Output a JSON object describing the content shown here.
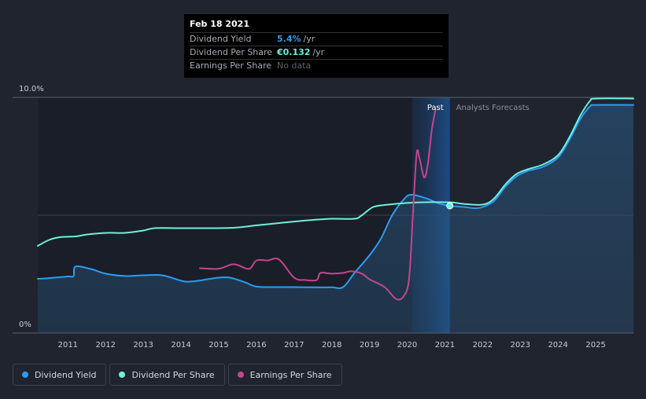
{
  "tooltip": {
    "date": "Feb 18 2021",
    "rows": [
      {
        "label": "Dividend Yield",
        "value": "5.4%",
        "unit": "/yr",
        "color": "#2a9df4"
      },
      {
        "label": "Dividend Per Share",
        "value": "€0.132",
        "unit": "/yr",
        "color": "#6ff0dc"
      },
      {
        "label": "Earnings Per Share",
        "value": "No data",
        "unit": "",
        "color": "#5d616a"
      }
    ]
  },
  "legend": [
    {
      "label": "Dividend Yield",
      "color": "#2a9df4"
    },
    {
      "label": "Dividend Per Share",
      "color": "#6ff0dc"
    },
    {
      "label": "Earnings Per Share",
      "color": "#c4468e"
    }
  ],
  "chart_data": {
    "type": "line",
    "title": "",
    "xlabel": "",
    "ylabel": "",
    "x_range": [
      2010.2,
      2026.0
    ],
    "ylim": [
      0,
      10
    ],
    "y_ticks": [
      {
        "value": 10,
        "label": "10.0%"
      },
      {
        "value": 0,
        "label": "0%"
      }
    ],
    "x_ticks": [
      "2011",
      "2012",
      "2013",
      "2014",
      "2015",
      "2016",
      "2017",
      "2018",
      "2019",
      "2020",
      "2021",
      "2022",
      "2023",
      "2024",
      "2025"
    ],
    "x_tick_values": [
      2011,
      2012,
      2013,
      2014,
      2015,
      2016,
      2017,
      2018,
      2019,
      2020,
      2021,
      2022,
      2023,
      2024,
      2025
    ],
    "past_label": "Past",
    "forecast_label": "Analysts Forecasts",
    "forecast_start": 2021.13,
    "highlight_start": 2020.13,
    "marker": {
      "x": 2021.13,
      "y": 5.4
    },
    "series": [
      {
        "name": "Dividend Yield",
        "color": "#2a9df4",
        "points": [
          [
            2010.2,
            2.3
          ],
          [
            2010.5,
            2.33
          ],
          [
            2011.0,
            2.4
          ],
          [
            2011.15,
            2.42
          ],
          [
            2011.2,
            2.82
          ],
          [
            2011.6,
            2.72
          ],
          [
            2012.0,
            2.52
          ],
          [
            2012.5,
            2.42
          ],
          [
            2013.0,
            2.45
          ],
          [
            2013.5,
            2.45
          ],
          [
            2014.0,
            2.22
          ],
          [
            2014.2,
            2.18
          ],
          [
            2014.5,
            2.23
          ],
          [
            2015.0,
            2.35
          ],
          [
            2015.3,
            2.35
          ],
          [
            2015.7,
            2.15
          ],
          [
            2016.0,
            1.97
          ],
          [
            2016.5,
            1.95
          ],
          [
            2017.0,
            1.95
          ],
          [
            2017.5,
            1.94
          ],
          [
            2018.0,
            1.94
          ],
          [
            2018.3,
            1.95
          ],
          [
            2018.6,
            2.55
          ],
          [
            2019.0,
            3.3
          ],
          [
            2019.3,
            4.0
          ],
          [
            2019.6,
            5.0
          ],
          [
            2019.9,
            5.65
          ],
          [
            2020.1,
            5.87
          ],
          [
            2020.5,
            5.72
          ],
          [
            2020.8,
            5.52
          ],
          [
            2021.0,
            5.44
          ],
          [
            2021.13,
            5.4
          ],
          [
            2021.5,
            5.35
          ],
          [
            2021.8,
            5.3
          ],
          [
            2022.0,
            5.35
          ],
          [
            2022.3,
            5.6
          ],
          [
            2022.6,
            6.2
          ],
          [
            2022.9,
            6.65
          ],
          [
            2023.2,
            6.88
          ],
          [
            2023.6,
            7.05
          ],
          [
            2024.0,
            7.45
          ],
          [
            2024.3,
            8.2
          ],
          [
            2024.6,
            9.1
          ],
          [
            2024.85,
            9.62
          ],
          [
            2025.0,
            9.68
          ],
          [
            2026.0,
            9.68
          ]
        ]
      },
      {
        "name": "Dividend Per Share",
        "color": "#6ff0dc",
        "points": [
          [
            2010.2,
            3.7
          ],
          [
            2010.5,
            3.95
          ],
          [
            2010.8,
            4.07
          ],
          [
            2011.2,
            4.1
          ],
          [
            2011.5,
            4.18
          ],
          [
            2012.0,
            4.25
          ],
          [
            2012.5,
            4.25
          ],
          [
            2013.0,
            4.35
          ],
          [
            2013.3,
            4.45
          ],
          [
            2014.0,
            4.45
          ],
          [
            2015.0,
            4.45
          ],
          [
            2015.5,
            4.48
          ],
          [
            2016.0,
            4.57
          ],
          [
            2016.5,
            4.65
          ],
          [
            2017.0,
            4.73
          ],
          [
            2017.5,
            4.8
          ],
          [
            2018.0,
            4.85
          ],
          [
            2018.6,
            4.85
          ],
          [
            2018.8,
            5.0
          ],
          [
            2019.1,
            5.35
          ],
          [
            2019.5,
            5.45
          ],
          [
            2020.0,
            5.52
          ],
          [
            2020.5,
            5.55
          ],
          [
            2021.13,
            5.55
          ],
          [
            2021.5,
            5.48
          ],
          [
            2022.0,
            5.45
          ],
          [
            2022.3,
            5.7
          ],
          [
            2022.6,
            6.3
          ],
          [
            2022.9,
            6.75
          ],
          [
            2023.2,
            6.95
          ],
          [
            2023.6,
            7.15
          ],
          [
            2024.0,
            7.55
          ],
          [
            2024.3,
            8.3
          ],
          [
            2024.6,
            9.25
          ],
          [
            2024.85,
            9.85
          ],
          [
            2025.0,
            9.95
          ],
          [
            2026.0,
            9.95
          ]
        ]
      },
      {
        "name": "Earnings Per Share",
        "color": "#c4468e",
        "points": [
          [
            2014.5,
            2.75
          ],
          [
            2015.0,
            2.73
          ],
          [
            2015.4,
            2.92
          ],
          [
            2015.8,
            2.72
          ],
          [
            2016.0,
            3.08
          ],
          [
            2016.3,
            3.08
          ],
          [
            2016.6,
            3.12
          ],
          [
            2017.0,
            2.35
          ],
          [
            2017.3,
            2.25
          ],
          [
            2017.6,
            2.25
          ],
          [
            2017.7,
            2.55
          ],
          [
            2018.0,
            2.52
          ],
          [
            2018.3,
            2.55
          ],
          [
            2018.5,
            2.62
          ],
          [
            2018.8,
            2.52
          ],
          [
            2019.0,
            2.28
          ],
          [
            2019.4,
            1.95
          ],
          [
            2019.7,
            1.45
          ],
          [
            2019.9,
            1.55
          ],
          [
            2020.05,
            2.3
          ],
          [
            2020.15,
            5.0
          ],
          [
            2020.25,
            7.6
          ],
          [
            2020.33,
            7.4
          ],
          [
            2020.45,
            6.6
          ],
          [
            2020.55,
            7.2
          ],
          [
            2020.65,
            8.6
          ],
          [
            2020.75,
            9.5
          ]
        ]
      }
    ]
  }
}
